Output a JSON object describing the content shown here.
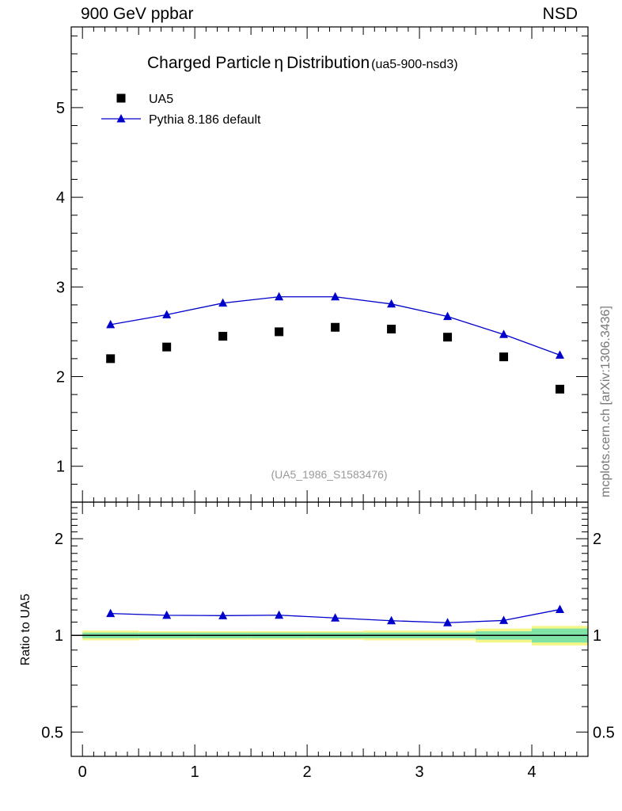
{
  "header": {
    "left": "900 GeV ppbar",
    "right": "NSD"
  },
  "side_label": "mcplots.cern.ch [arXiv:1306.3436]",
  "chart_data": [
    {
      "type": "scatter",
      "title": "Charged Particle",
      "title_symbol": "η",
      "title_rest": "Distribution",
      "title_suffix": "(ua5-900-nsd3)",
      "reference_label": "(UA5_1986_S1583476)",
      "x": [
        0.25,
        0.75,
        1.25,
        1.75,
        2.25,
        2.75,
        3.25,
        3.75,
        4.25
      ],
      "xlim": [
        -0.1,
        4.5
      ],
      "ylim": [
        0.6,
        5.9
      ],
      "yticks": [
        1,
        2,
        3,
        4,
        5
      ],
      "ytick_labels": [
        "1",
        "2",
        "3",
        "4",
        "5"
      ],
      "legend_placement": "top-left",
      "series": [
        {
          "name": "UA5",
          "marker": "square",
          "color": "#000000",
          "values": [
            2.2,
            2.33,
            2.45,
            2.5,
            2.55,
            2.53,
            2.44,
            2.22,
            1.86
          ]
        },
        {
          "name": "Pythia 8.186 default",
          "marker": "triangle",
          "color": "#0000cc",
          "values": [
            2.58,
            2.69,
            2.82,
            2.89,
            2.89,
            2.81,
            2.67,
            2.47,
            2.24
          ]
        }
      ]
    },
    {
      "type": "line",
      "ylabel": "Ratio to UA5",
      "x": [
        0.25,
        0.75,
        1.25,
        1.75,
        2.25,
        2.75,
        3.25,
        3.75,
        4.25
      ],
      "xlim": [
        -0.1,
        4.5
      ],
      "ylim": [
        0.42,
        2.6
      ],
      "ylog": true,
      "xticks": [
        0,
        1,
        2,
        3,
        4
      ],
      "xtick_labels": [
        "0",
        "1",
        "2",
        "3",
        "4"
      ],
      "yticks": [
        0.5,
        1,
        2
      ],
      "ytick_labels": [
        "0.5",
        "1",
        "2"
      ],
      "ratio": [
        1.17,
        1.155,
        1.152,
        1.156,
        1.133,
        1.111,
        1.095,
        1.113,
        1.204
      ],
      "bands": {
        "bin_edges": [
          0.0,
          0.5,
          1.0,
          1.5,
          2.0,
          2.5,
          3.0,
          3.5,
          4.0,
          4.5
        ],
        "inner": [
          0.02,
          0.02,
          0.02,
          0.02,
          0.02,
          0.02,
          0.02,
          0.03,
          0.05
        ],
        "outer": [
          0.035,
          0.03,
          0.03,
          0.03,
          0.03,
          0.035,
          0.035,
          0.05,
          0.07
        ],
        "inner_color": "#7fe3a6",
        "outer_color": "#f6f58a"
      }
    }
  ]
}
